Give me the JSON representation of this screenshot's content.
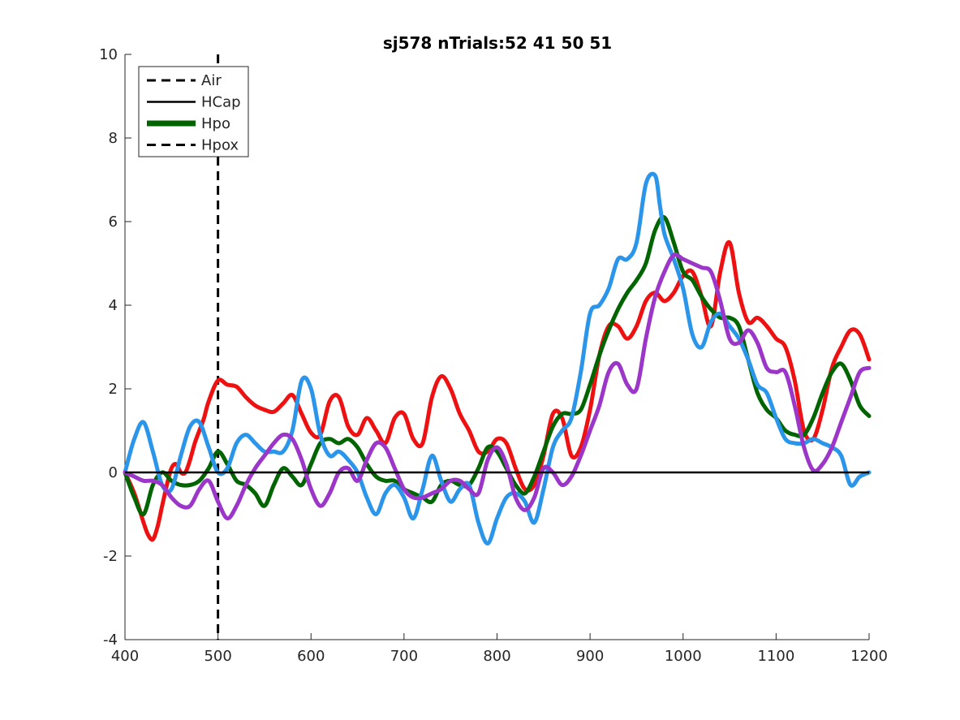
{
  "chart_data": {
    "type": "line",
    "title": "sj578 nTrials:52  41  50  51",
    "xlabel": "",
    "ylabel": "",
    "xlim": [
      400,
      1200
    ],
    "ylim": [
      -4,
      10
    ],
    "xticks": [
      400,
      500,
      600,
      700,
      800,
      900,
      1000,
      1100,
      1200
    ],
    "yticks": [
      -4,
      -2,
      0,
      2,
      4,
      6,
      8,
      10
    ],
    "grid": false,
    "legend_position": "top-left",
    "legend": [
      {
        "label": "Air",
        "style": "dashed",
        "color": "#000000"
      },
      {
        "label": "HCap",
        "style": "solid",
        "color": "#000000"
      },
      {
        "label": "Hpo",
        "style": "solid-thick",
        "color": "#006400"
      },
      {
        "label": "Hpox",
        "style": "dashed",
        "color": "#000000"
      }
    ],
    "annotations": {
      "vertical_line_x": 500,
      "horizontal_line_y": 0
    },
    "series": [
      {
        "color": "#ee1111",
        "x": [
          400,
          410,
          420,
          425,
          430,
          435,
          440,
          445,
          450,
          455,
          460,
          465,
          470,
          475,
          480,
          485,
          490,
          500,
          510,
          520,
          530,
          540,
          550,
          560,
          570,
          580,
          590,
          600,
          610,
          620,
          630,
          640,
          650,
          660,
          670,
          680,
          690,
          700,
          710,
          720,
          730,
          740,
          750,
          760,
          770,
          780,
          790,
          800,
          810,
          820,
          830,
          840,
          850,
          860,
          870,
          880,
          890,
          900,
          910,
          920,
          930,
          940,
          950,
          960,
          970,
          980,
          990,
          1000,
          1010,
          1020,
          1030,
          1040,
          1050,
          1060,
          1070,
          1080,
          1090,
          1100,
          1110,
          1120,
          1130,
          1140,
          1150,
          1160,
          1170,
          1180,
          1190,
          1200
        ],
        "values": [
          0,
          -0.5,
          -1.2,
          -1.5,
          -1.6,
          -1.3,
          -0.8,
          -0.3,
          0.1,
          0.2,
          0.0,
          0.0,
          0.3,
          0.7,
          1.0,
          1.3,
          1.7,
          2.2,
          2.1,
          2.05,
          1.8,
          1.6,
          1.5,
          1.45,
          1.65,
          1.85,
          1.4,
          0.95,
          0.9,
          1.7,
          1.8,
          1.1,
          0.9,
          1.3,
          1.0,
          0.7,
          1.3,
          1.4,
          0.8,
          0.7,
          1.8,
          2.3,
          2.0,
          1.4,
          1.0,
          0.5,
          0.5,
          0.8,
          0.7,
          0.1,
          -0.4,
          -0.3,
          0.4,
          1.4,
          1.3,
          0.4,
          0.6,
          1.5,
          2.8,
          3.5,
          3.5,
          3.2,
          3.5,
          4.1,
          4.3,
          4.1,
          4.3,
          4.7,
          4.8,
          4.2,
          3.5,
          4.8,
          5.5,
          4.3,
          3.6,
          3.7,
          3.5,
          3.2,
          3.0,
          2.2,
          1.0,
          0.8,
          1.5,
          2.5,
          3.0,
          3.4,
          3.3,
          2.7
        ]
      },
      {
        "color": "#006400",
        "x": [
          400,
          410,
          420,
          430,
          440,
          450,
          460,
          470,
          480,
          490,
          500,
          510,
          520,
          530,
          540,
          550,
          560,
          570,
          580,
          590,
          600,
          610,
          620,
          630,
          640,
          650,
          660,
          670,
          680,
          690,
          700,
          710,
          720,
          730,
          740,
          750,
          760,
          770,
          780,
          790,
          800,
          810,
          820,
          830,
          840,
          850,
          860,
          870,
          880,
          890,
          900,
          910,
          920,
          930,
          940,
          950,
          960,
          970,
          980,
          990,
          1000,
          1010,
          1020,
          1030,
          1040,
          1050,
          1060,
          1070,
          1080,
          1090,
          1100,
          1110,
          1120,
          1130,
          1140,
          1150,
          1160,
          1170,
          1180,
          1190,
          1200
        ],
        "values": [
          0,
          -0.6,
          -1.0,
          -0.3,
          0.0,
          -0.2,
          -0.3,
          -0.3,
          -0.2,
          0.1,
          0.5,
          0.2,
          -0.2,
          -0.3,
          -0.5,
          -0.8,
          -0.3,
          0.1,
          -0.1,
          -0.3,
          0.2,
          0.7,
          0.8,
          0.7,
          0.8,
          0.6,
          0.2,
          -0.1,
          -0.2,
          -0.2,
          -0.4,
          -0.5,
          -0.6,
          -0.7,
          -0.3,
          -0.2,
          -0.3,
          -0.3,
          0.1,
          0.6,
          0.5,
          0.1,
          -0.3,
          -0.5,
          -0.1,
          0.5,
          1.1,
          1.4,
          1.4,
          1.5,
          2.1,
          2.8,
          3.4,
          3.9,
          4.3,
          4.6,
          5.0,
          5.8,
          6.1,
          5.5,
          4.8,
          4.6,
          4.2,
          3.9,
          3.7,
          3.7,
          3.5,
          2.7,
          1.9,
          1.5,
          1.3,
          1.0,
          0.9,
          0.9,
          1.3,
          1.9,
          2.4,
          2.6,
          2.2,
          1.6,
          1.35
        ]
      },
      {
        "color": "#2b95ea",
        "x": [
          400,
          410,
          420,
          430,
          440,
          450,
          460,
          470,
          480,
          490,
          500,
          510,
          520,
          530,
          540,
          550,
          560,
          570,
          580,
          590,
          600,
          610,
          620,
          630,
          640,
          650,
          660,
          670,
          680,
          690,
          700,
          710,
          720,
          730,
          740,
          750,
          760,
          770,
          780,
          790,
          800,
          810,
          820,
          830,
          840,
          850,
          860,
          870,
          880,
          890,
          900,
          910,
          920,
          930,
          940,
          950,
          960,
          970,
          975,
          980,
          990,
          1000,
          1010,
          1020,
          1030,
          1040,
          1050,
          1060,
          1070,
          1080,
          1090,
          1100,
          1110,
          1120,
          1130,
          1140,
          1150,
          1160,
          1170,
          1180,
          1190,
          1200
        ],
        "values": [
          0,
          0.8,
          1.2,
          0.5,
          -0.3,
          -0.4,
          0.4,
          1.1,
          1.2,
          0.6,
          0.0,
          0.1,
          0.7,
          0.9,
          0.7,
          0.5,
          0.5,
          0.5,
          1.0,
          2.2,
          2.0,
          0.9,
          0.4,
          0.5,
          0.3,
          0.0,
          -0.6,
          -1.0,
          -0.5,
          -0.3,
          -0.6,
          -1.1,
          -0.4,
          0.4,
          -0.2,
          -0.7,
          -0.4,
          -0.3,
          -1.2,
          -1.7,
          -1.1,
          -0.6,
          -0.5,
          -0.7,
          -1.2,
          -0.4,
          0.6,
          1.0,
          1.3,
          2.4,
          3.8,
          4.0,
          4.4,
          5.1,
          5.1,
          5.5,
          6.9,
          7.1,
          6.4,
          5.7,
          5.1,
          4.4,
          3.3,
          3.0,
          3.6,
          3.8,
          3.5,
          3.2,
          2.7,
          2.1,
          1.9,
          1.3,
          0.8,
          0.7,
          0.7,
          0.8,
          0.7,
          0.6,
          0.4,
          -0.3,
          -0.1,
          0.0
        ]
      },
      {
        "color": "#9b36c9",
        "x": [
          400,
          410,
          420,
          430,
          440,
          450,
          460,
          470,
          480,
          490,
          500,
          510,
          520,
          530,
          540,
          550,
          560,
          570,
          580,
          590,
          600,
          610,
          620,
          630,
          640,
          650,
          660,
          670,
          680,
          690,
          700,
          710,
          720,
          730,
          740,
          750,
          760,
          770,
          780,
          790,
          800,
          810,
          820,
          830,
          840,
          850,
          860,
          870,
          880,
          890,
          900,
          910,
          920,
          930,
          940,
          950,
          960,
          970,
          980,
          990,
          1000,
          1010,
          1020,
          1030,
          1040,
          1050,
          1060,
          1070,
          1080,
          1090,
          1100,
          1110,
          1120,
          1130,
          1140,
          1150,
          1160,
          1170,
          1180,
          1190,
          1200
        ],
        "values": [
          0,
          -0.1,
          -0.2,
          -0.2,
          -0.3,
          -0.6,
          -0.8,
          -0.8,
          -0.4,
          -0.2,
          -0.7,
          -1.1,
          -0.8,
          -0.3,
          0.1,
          0.4,
          0.7,
          0.9,
          0.8,
          0.3,
          -0.4,
          -0.8,
          -0.5,
          0.0,
          0.1,
          -0.2,
          0.3,
          0.7,
          0.6,
          0.1,
          -0.4,
          -0.6,
          -0.6,
          -0.5,
          -0.4,
          -0.2,
          -0.2,
          -0.4,
          -0.5,
          0.3,
          0.6,
          0.2,
          -0.6,
          -0.9,
          -0.6,
          0.1,
          0.0,
          -0.3,
          -0.1,
          0.4,
          1.0,
          1.6,
          2.4,
          2.6,
          2.1,
          2.0,
          3.2,
          4.2,
          4.8,
          5.2,
          5.1,
          5.0,
          4.9,
          4.8,
          4.1,
          3.2,
          3.1,
          3.4,
          3.1,
          2.5,
          2.4,
          2.4,
          1.6,
          0.6,
          0.05,
          0.2,
          0.6,
          1.2,
          1.8,
          2.4,
          2.5
        ]
      }
    ]
  }
}
